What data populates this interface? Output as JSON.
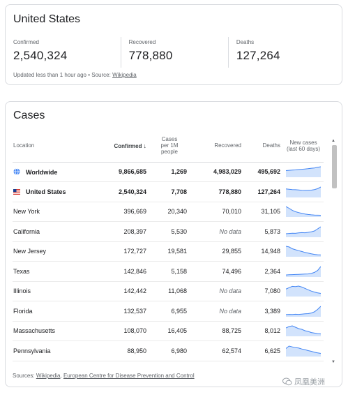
{
  "summary": {
    "title": "United States",
    "stats": [
      {
        "label": "Confirmed",
        "value": "2,540,324"
      },
      {
        "label": "Recovered",
        "value": "778,880"
      },
      {
        "label": "Deaths",
        "value": "127,264"
      }
    ],
    "updated_text": "Updated less than 1 hour ago",
    "bullet": "•",
    "source_prefix": "Source:",
    "source_link": "Wikipedia"
  },
  "cases": {
    "title": "Cases",
    "columns": {
      "location": "Location",
      "confirmed": "Confirmed",
      "sort_arrow": "↓",
      "per1m": [
        "Cases",
        "per 1M",
        "people"
      ],
      "recovered": "Recovered",
      "deaths": "Deaths",
      "trend": [
        "New cases",
        "(last 60 days)"
      ]
    },
    "rows": [
      {
        "location": "Worldwide",
        "confirmed": "9,866,685",
        "per1m": "1,269",
        "recovered": "4,983,029",
        "deaths": "495,692",
        "icon": "globe-icon",
        "trend": [
          40,
          42,
          44,
          45,
          47,
          49,
          51,
          53,
          56,
          58,
          62,
          66
        ]
      },
      {
        "location": "United States",
        "confirmed": "2,540,324",
        "per1m": "7,708",
        "recovered": "778,880",
        "deaths": "127,264",
        "icon": "us-flag-icon",
        "trend": [
          60,
          58,
          55,
          54,
          52,
          50,
          49,
          50,
          51,
          55,
          62,
          75
        ]
      },
      {
        "location": "New York",
        "confirmed": "396,669",
        "per1m": "20,340",
        "recovered": "70,010",
        "deaths": "31,105",
        "trend": [
          85,
          70,
          52,
          40,
          32,
          26,
          20,
          16,
          13,
          11,
          10,
          9
        ]
      },
      {
        "location": "California",
        "confirmed": "208,397",
        "per1m": "5,530",
        "recovered": "No data",
        "deaths": "5,873",
        "trend": [
          20,
          22,
          24,
          23,
          26,
          28,
          27,
          30,
          34,
          40,
          55,
          70
        ]
      },
      {
        "location": "New Jersey",
        "confirmed": "172,727",
        "per1m": "19,581",
        "recovered": "29,855",
        "deaths": "14,948",
        "trend": [
          80,
          75,
          60,
          52,
          44,
          38,
          30,
          24,
          18,
          14,
          11,
          9
        ]
      },
      {
        "location": "Texas",
        "confirmed": "142,846",
        "per1m": "5,158",
        "recovered": "74,496",
        "deaths": "2,364",
        "trend": [
          10,
          12,
          13,
          14,
          15,
          16,
          17,
          18,
          22,
          30,
          45,
          75
        ]
      },
      {
        "location": "Illinois",
        "confirmed": "142,442",
        "per1m": "11,068",
        "recovered": "No data",
        "deaths": "7,080",
        "trend": [
          50,
          60,
          70,
          68,
          72,
          65,
          55,
          45,
          35,
          28,
          22,
          18
        ]
      },
      {
        "location": "Florida",
        "confirmed": "132,537",
        "per1m": "6,955",
        "recovered": "No data",
        "deaths": "3,389",
        "trend": [
          12,
          14,
          13,
          15,
          14,
          16,
          18,
          20,
          25,
          35,
          55,
          80
        ]
      },
      {
        "location": "Massachusetts",
        "confirmed": "108,070",
        "per1m": "16,405",
        "recovered": "88,725",
        "deaths": "8,012",
        "trend": [
          55,
          65,
          70,
          60,
          50,
          45,
          35,
          30,
          22,
          18,
          14,
          12
        ]
      },
      {
        "location": "Pennsylvania",
        "confirmed": "88,950",
        "per1m": "6,980",
        "recovered": "62,574",
        "deaths": "6,625",
        "trend": [
          45,
          60,
          55,
          50,
          48,
          42,
          38,
          32,
          28,
          22,
          18,
          15
        ]
      }
    ],
    "sources_prefix": "Sources:",
    "sources_link1": "Wikipedia",
    "sources_sep": ",",
    "sources_link2": "European Centre for Disease Prevention and Control"
  },
  "watermark": "凤凰美洲",
  "colors": {
    "sparkline": "#4285f4",
    "sparkline_fill": "#d2e3fc",
    "border": "#dadce0"
  }
}
